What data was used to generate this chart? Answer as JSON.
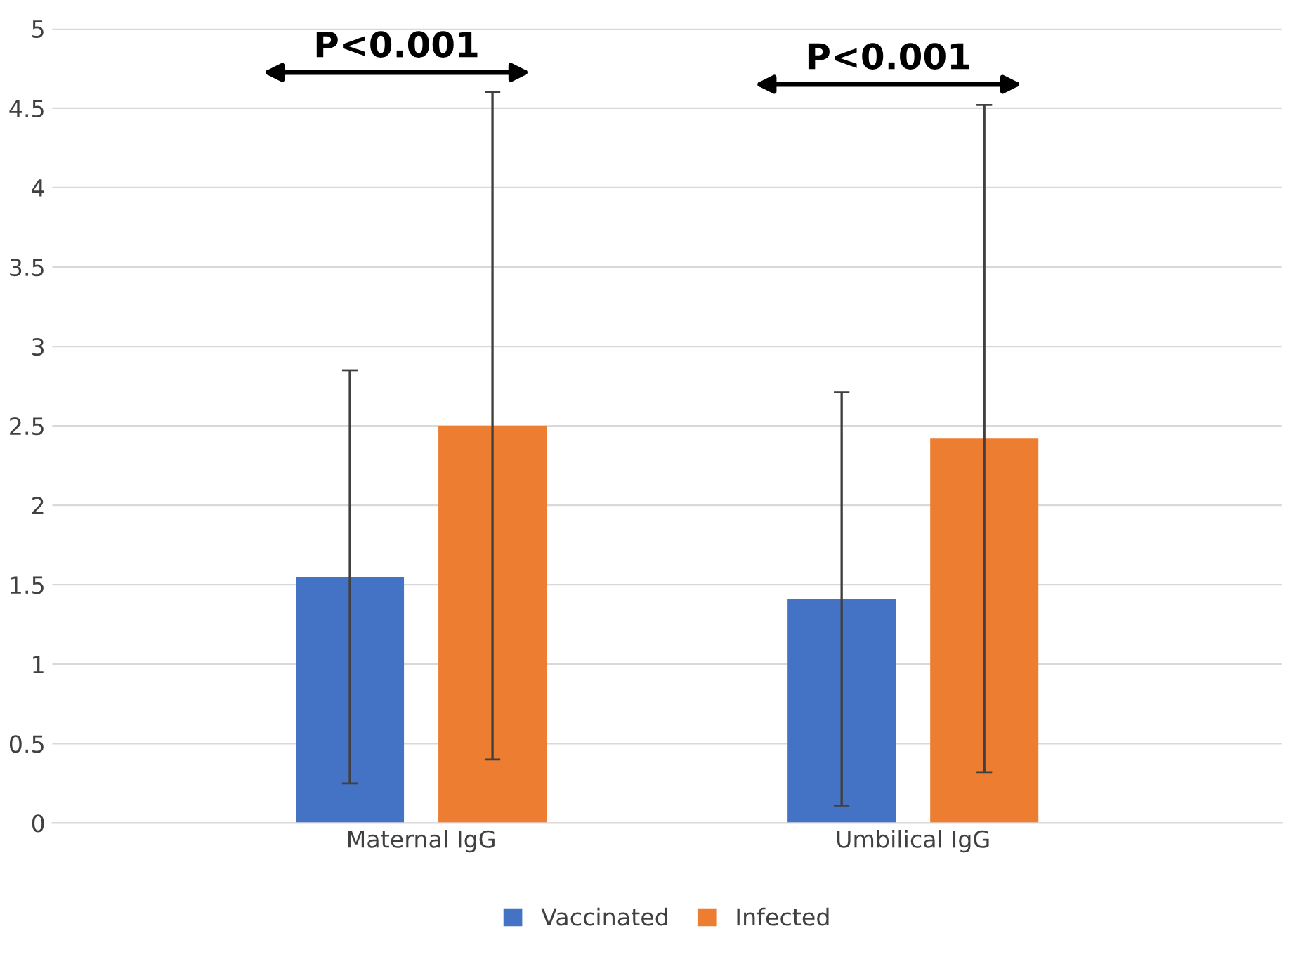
{
  "chart_data": {
    "type": "bar",
    "categories": [
      "Maternal IgG",
      "Umbilical IgG"
    ],
    "series": [
      {
        "name": "Vaccinated",
        "color": "#4472c4",
        "values": [
          1.55,
          1.41
        ],
        "errors": [
          1.3,
          1.3
        ]
      },
      {
        "name": "Infected",
        "color": "#ed7d31",
        "values": [
          2.5,
          2.42
        ],
        "errors": [
          2.1,
          2.1
        ]
      }
    ],
    "ylim": [
      0,
      5
    ],
    "yticks": [
      0,
      0.5,
      1,
      1.5,
      2,
      2.5,
      3,
      3.5,
      4,
      4.5,
      5
    ],
    "grid": "y",
    "legend": "bottom",
    "annotations": [
      "P<0.001",
      "P<0.001"
    ]
  }
}
